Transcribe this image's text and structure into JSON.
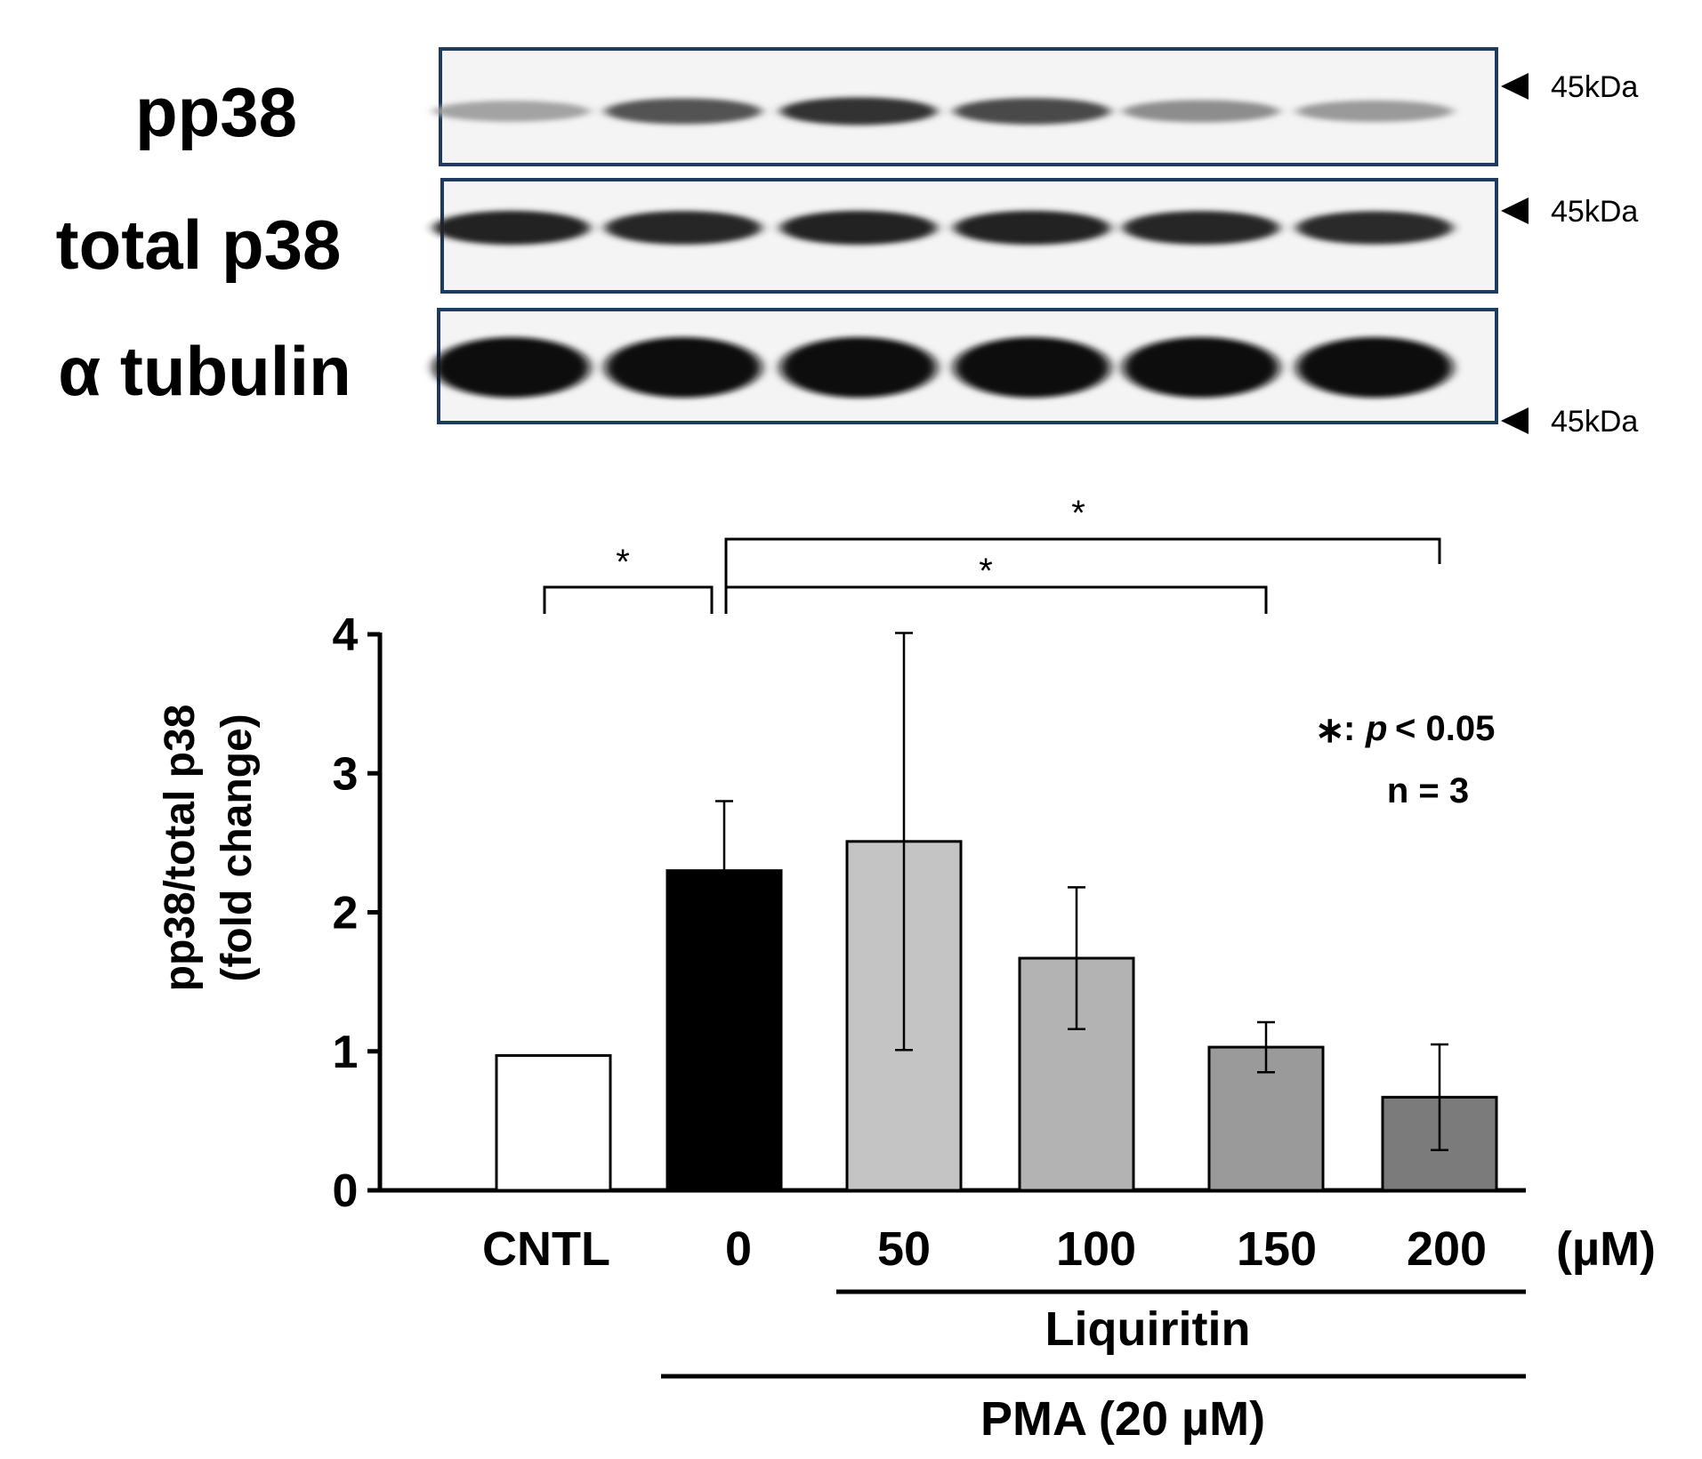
{
  "blot": {
    "rows": [
      {
        "label": "pp38",
        "marker": "45kDa",
        "lane_intensity": [
          0.32,
          0.68,
          0.82,
          0.72,
          0.42,
          0.36
        ]
      },
      {
        "label": "total p38",
        "marker": "45kDa",
        "lane_intensity": [
          0.9,
          0.88,
          0.9,
          0.9,
          0.88,
          0.85
        ]
      },
      {
        "label": "α tubulin",
        "marker": "45kDa",
        "lane_intensity": [
          1.0,
          1.0,
          1.0,
          1.0,
          1.0,
          1.0
        ]
      }
    ]
  },
  "chart_data": {
    "type": "bar",
    "categories": [
      "CNTL",
      "0",
      "50",
      "100",
      "150",
      "200"
    ],
    "values": [
      0.97,
      2.3,
      2.51,
      1.67,
      1.03,
      0.67
    ],
    "errors": [
      0,
      0.5,
      1.5,
      0.51,
      0.18,
      0.38
    ],
    "bar_colors": [
      "#ffffff",
      "#000000",
      "#c4c4c4",
      "#b3b3b3",
      "#9a9a9a",
      "#7b7b7b"
    ],
    "ylabel_line1": "pp38/total p38",
    "ylabel_line2": "(fold change)",
    "ylim": [
      0,
      4
    ],
    "yticks": [
      "0",
      "1",
      "2",
      "3",
      "4"
    ],
    "unit_label": "(µM)",
    "group_labels": {
      "liquiritin": "Liquiritin",
      "pma": "PMA (20 µM)"
    },
    "significance": {
      "star": "*",
      "brackets": [
        {
          "from": "CNTL",
          "to": "0"
        },
        {
          "from": "0",
          "to": "150"
        },
        {
          "from": "0",
          "to": "200"
        }
      ]
    },
    "annotation": {
      "star": "∗",
      "sep": ":",
      "p": "p",
      "threshold": "< 0.05",
      "n": "n = 3"
    }
  }
}
